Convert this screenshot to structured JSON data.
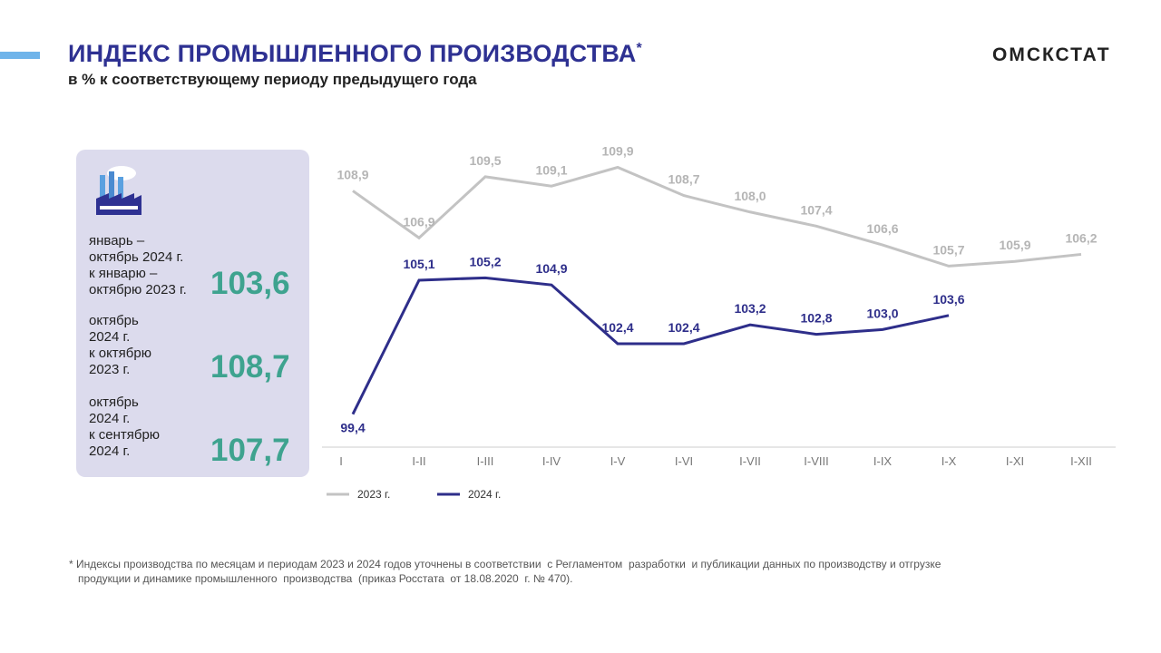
{
  "header": {
    "title": "ИНДЕКС ПРОМЫШЛЕННОГО  ПРОИЗВОДСТВА",
    "title_mark": "*",
    "subtitle": "в % к соответствующему периоду предыдущего года",
    "brand": "ОМСКСТАТ"
  },
  "panel": {
    "items": [
      {
        "lines": [
          "январь –",
          "октябрь 2024 г.",
          "к январю –",
          "октябрю 2023 г."
        ],
        "value": "103,6"
      },
      {
        "lines": [
          "октябрь",
          "2024 г.",
          "к октябрю",
          "2023 г."
        ],
        "value": "108,7"
      },
      {
        "lines": [
          "октябрь",
          "2024 г.",
          "к сентябрю",
          "2024 г."
        ],
        "value": "107,7"
      }
    ]
  },
  "chart_data": {
    "type": "line",
    "categories": [
      "I",
      "I-II",
      "I-III",
      "I-IV",
      "I-V",
      "I-VI",
      "I-VII",
      "I-VIII",
      "I-IX",
      "I-X",
      "I-XI",
      "I-XII"
    ],
    "ylim": [
      98,
      111
    ],
    "series": [
      {
        "name": "2023 г.",
        "color": "#c3c3c3",
        "values": [
          108.9,
          106.9,
          109.5,
          109.1,
          109.9,
          108.7,
          108.0,
          107.4,
          106.6,
          105.7,
          105.9,
          106.2
        ],
        "value_labels": [
          "108,9",
          "106,9",
          "109,5",
          "109,1",
          "109,9",
          "108,7",
          "108,0",
          "107,4",
          "106,6",
          "105,7",
          "105,9",
          "106,2"
        ]
      },
      {
        "name": "2024 г.",
        "color": "#2e2e8a",
        "values": [
          99.4,
          105.1,
          105.2,
          104.9,
          102.4,
          102.4,
          103.2,
          102.8,
          103.0,
          103.6,
          null,
          null
        ],
        "value_labels": [
          "99,4",
          "105,1",
          "105,2",
          "104,9",
          "102,4",
          "102,4",
          "103,2",
          "102,8",
          "103,0",
          "103,6",
          null,
          null
        ]
      }
    ]
  },
  "footnote": {
    "lines": [
      "* Индексы производства по месяцам и периодам 2023 и 2024 годов уточнены в соответствии  с Регламентом  разработки  и публикации данных по производству и отгрузке",
      "   продукции и динамике промышленного  производства  (приказ Росстата  от 18.08.2020  г. № 470)."
    ]
  }
}
